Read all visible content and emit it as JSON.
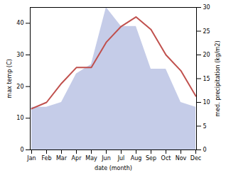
{
  "chart_data": {
    "type": "line",
    "categories": [
      "Jan",
      "Feb",
      "Mar",
      "Apr",
      "May",
      "Jun",
      "Jul",
      "Aug",
      "Sep",
      "Oct",
      "Nov",
      "Dec"
    ],
    "xlabel": "date (month)",
    "ylabel": "max temp (C)",
    "y2label": "med. precipitation (kg/m2)",
    "series": [
      {
        "type": "area",
        "axis": "y2",
        "color": "#c5cce8",
        "values": [
          9,
          9,
          10,
          16,
          18,
          30,
          26,
          26,
          17,
          17,
          10,
          9
        ]
      },
      {
        "type": "line",
        "color": "#c0504d",
        "values": [
          13,
          15,
          21,
          26,
          26,
          34,
          39,
          42,
          38,
          30,
          25,
          17
        ]
      }
    ],
    "ylim": [
      0,
      45
    ],
    "yticks": [
      0,
      10,
      20,
      30,
      40
    ],
    "y2lim": [
      0,
      30
    ],
    "y2ticks": [
      0,
      5,
      10,
      15,
      20,
      25,
      30
    ]
  }
}
